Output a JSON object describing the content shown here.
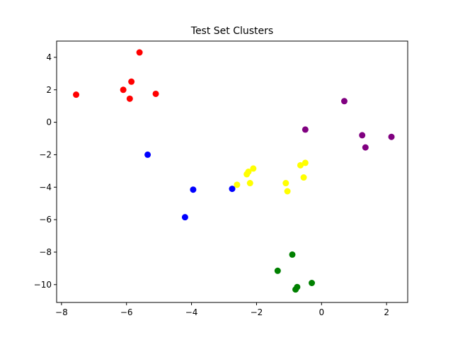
{
  "chart_data": {
    "type": "scatter",
    "title": "Test Set Clusters",
    "xlabel": "",
    "ylabel": "",
    "xlim": [
      -8.15,
      2.65
    ],
    "ylim": [
      -11.1,
      5.0
    ],
    "xticks": [
      -8,
      -6,
      -4,
      -2,
      0,
      2
    ],
    "yticks": [
      4,
      2,
      0,
      -2,
      -4,
      -6,
      -8,
      -10
    ],
    "grid": false,
    "series": [
      {
        "color": "#ff0000",
        "points": [
          {
            "x": -5.6,
            "y": 4.3
          },
          {
            "x": -5.85,
            "y": 2.5
          },
          {
            "x": -6.1,
            "y": 2.0
          },
          {
            "x": -7.55,
            "y": 1.7
          },
          {
            "x": -5.1,
            "y": 1.75
          },
          {
            "x": -5.9,
            "y": 1.45
          }
        ]
      },
      {
        "color": "#0000ff",
        "points": [
          {
            "x": -5.35,
            "y": -2.0
          },
          {
            "x": -3.95,
            "y": -4.15
          },
          {
            "x": -2.75,
            "y": -4.1
          },
          {
            "x": -4.2,
            "y": -5.85
          }
        ]
      },
      {
        "color": "#ffff00",
        "points": [
          {
            "x": -2.1,
            "y": -2.85
          },
          {
            "x": -2.25,
            "y": -3.05
          },
          {
            "x": -2.3,
            "y": -3.2
          },
          {
            "x": -2.2,
            "y": -3.75
          },
          {
            "x": -2.6,
            "y": -3.85
          },
          {
            "x": -1.1,
            "y": -3.75
          },
          {
            "x": -1.05,
            "y": -4.25
          },
          {
            "x": -0.5,
            "y": -2.5
          },
          {
            "x": -0.65,
            "y": -2.65
          },
          {
            "x": -0.55,
            "y": -3.4
          }
        ]
      },
      {
        "color": "#800080",
        "points": [
          {
            "x": -0.5,
            "y": -0.45
          },
          {
            "x": 0.7,
            "y": 1.3
          },
          {
            "x": 1.25,
            "y": -0.8
          },
          {
            "x": 1.35,
            "y": -1.55
          },
          {
            "x": 2.15,
            "y": -0.9
          }
        ]
      },
      {
        "color": "#008000",
        "points": [
          {
            "x": -0.9,
            "y": -8.15
          },
          {
            "x": -1.35,
            "y": -9.15
          },
          {
            "x": -0.3,
            "y": -9.9
          },
          {
            "x": -0.75,
            "y": -10.15
          },
          {
            "x": -0.8,
            "y": -10.3
          }
        ]
      }
    ]
  }
}
